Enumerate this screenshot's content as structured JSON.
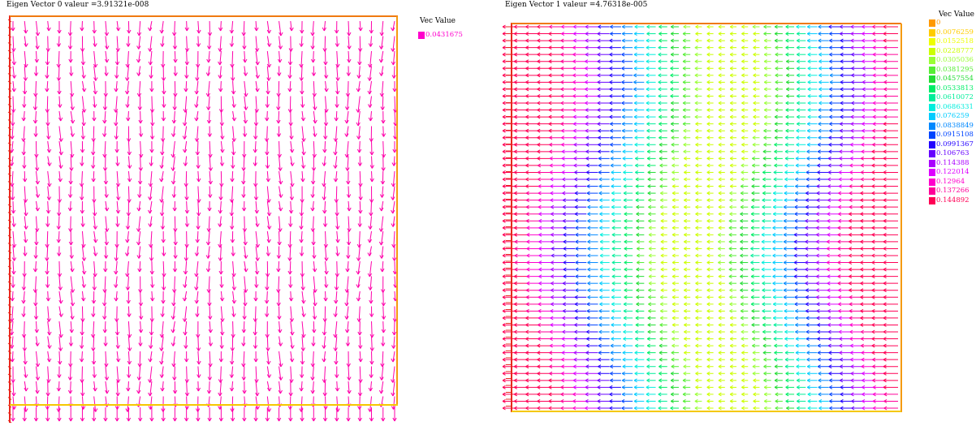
{
  "panels": [
    {
      "title": "Eigen Vector 0 valeur =3.91321e-008",
      "legend_title": "Vec Value",
      "legend": [
        {
          "label": "0.0431675",
          "color": "#ff00cc"
        }
      ],
      "arrow_direction": "down",
      "arrow_color": "#ff00aa",
      "border_colors": {
        "left": "#e8281e",
        "top": "#f07a10",
        "right": "#f59a10",
        "bottom": "#f5c800"
      }
    },
    {
      "title": "Eigen Vector 1 valeur =4.76318e-005",
      "legend_title": "Vec Value",
      "legend": [
        {
          "label": "0",
          "color": "#ff9900"
        },
        {
          "label": "0.0076259",
          "color": "#ffcc00"
        },
        {
          "label": "0.0152518",
          "color": "#eeff00"
        },
        {
          "label": "0.0228777",
          "color": "#ccff00"
        },
        {
          "label": "0.0305036",
          "color": "#99ff33"
        },
        {
          "label": "0.0381295",
          "color": "#55ee33"
        },
        {
          "label": "0.0457554",
          "color": "#22dd33"
        },
        {
          "label": "0.0533813",
          "color": "#00ee66"
        },
        {
          "label": "0.0610072",
          "color": "#00ee99"
        },
        {
          "label": "0.0686331",
          "color": "#00eedd"
        },
        {
          "label": "0.076259",
          "color": "#00ccff"
        },
        {
          "label": "0.0838849",
          "color": "#0088ff"
        },
        {
          "label": "0.0915108",
          "color": "#0044ff"
        },
        {
          "label": "0.0991367",
          "color": "#2200ff"
        },
        {
          "label": "0.106763",
          "color": "#6600ff"
        },
        {
          "label": "0.114388",
          "color": "#aa00ff"
        },
        {
          "label": "0.122014",
          "color": "#dd00ff"
        },
        {
          "label": "0.12964",
          "color": "#ff00cc"
        },
        {
          "label": "0.137266",
          "color": "#ff0099"
        },
        {
          "label": "0.144892",
          "color": "#ff0055"
        }
      ],
      "arrow_direction": "left",
      "border_colors": {
        "left": "#e8281e",
        "top": "#f07a10",
        "right": "#f59a10",
        "bottom": "#f5c800"
      }
    }
  ]
}
